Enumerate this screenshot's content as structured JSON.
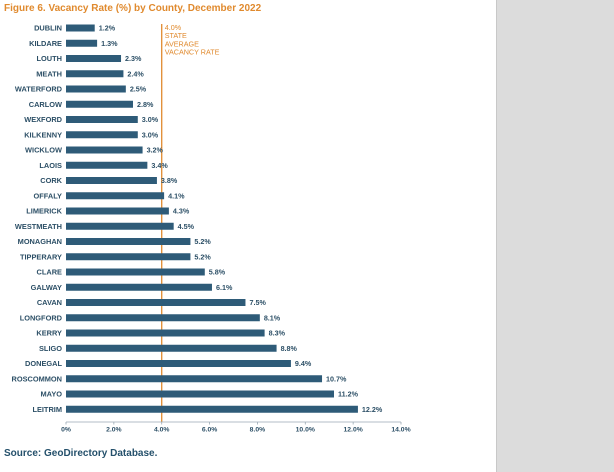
{
  "figure": {
    "title": "Figure 6. Vacancy Rate (%) by County, December 2022",
    "source": "Source: GeoDirectory Database."
  },
  "colors": {
    "bar": "#2e5b78",
    "title": "#e08a2e",
    "average_line": "#e08a2e",
    "text": "#2c4f66"
  },
  "chart_data": {
    "type": "bar",
    "orientation": "horizontal",
    "title": "Figure 6. Vacancy Rate (%) by County, December 2022",
    "categories": [
      "DUBLIN",
      "KILDARE",
      "LOUTH",
      "MEATH",
      "WATERFORD",
      "CARLOW",
      "WEXFORD",
      "KILKENNY",
      "WICKLOW",
      "LAOIS",
      "CORK",
      "OFFALY",
      "LIMERICK",
      "WESTMEATH",
      "MONAGHAN",
      "TIPPERARY",
      "CLARE",
      "GALWAY",
      "CAVAN",
      "LONGFORD",
      "KERRY",
      "SLIGO",
      "DONEGAL",
      "ROSCOMMON",
      "MAYO",
      "LEITRIM"
    ],
    "values": [
      1.2,
      1.3,
      2.3,
      2.4,
      2.5,
      2.8,
      3.0,
      3.0,
      3.2,
      3.4,
      3.8,
      4.1,
      4.3,
      4.5,
      5.2,
      5.2,
      5.8,
      6.1,
      7.5,
      8.1,
      8.3,
      8.8,
      9.4,
      10.7,
      11.2,
      12.2
    ],
    "value_labels": [
      "1.2%",
      "1.3%",
      "2.3%",
      "2.4%",
      "2.5%",
      "2.8%",
      "3.0%",
      "3.0%",
      "3.2%",
      "3.4%",
      "3.8%",
      "4.1%",
      "4.3%",
      "4.5%",
      "5.2%",
      "5.2%",
      "5.8%",
      "6.1%",
      "7.5%",
      "8.1%",
      "8.3%",
      "8.8%",
      "9.4%",
      "10.7%",
      "11.2%",
      "12.2%"
    ],
    "xlim": [
      0,
      14
    ],
    "x_ticks": [
      0,
      2,
      4,
      6,
      8,
      10,
      12,
      14
    ],
    "x_tick_labels": [
      "0%",
      "2.0%",
      "4.0%",
      "6.0%",
      "8.0%",
      "10.0%",
      "12.0%",
      "14.0%"
    ],
    "grid": false,
    "legend": "none",
    "reference_line": {
      "value": 4.0,
      "label_lines": [
        "4.0%",
        "STATE",
        "AVERAGE",
        "VACANCY RATE"
      ]
    }
  }
}
